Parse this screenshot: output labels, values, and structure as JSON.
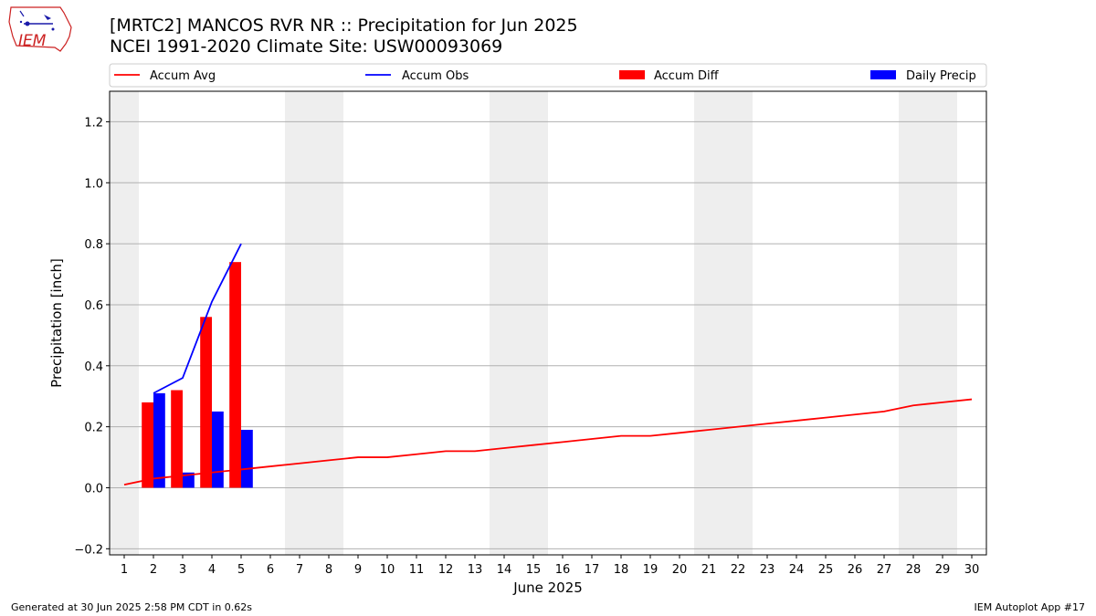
{
  "header": {
    "title_line1": "[MRTC2] MANCOS RVR NR :: Precipitation for Jun 2025",
    "title_line2": "NCEI 1991-2020 Climate Site: USW00093069",
    "logo_text": "IEM"
  },
  "footer": {
    "generated": "Generated at 30 Jun 2025 2:58 PM CDT in 0.62s",
    "app": "IEM Autoplot App #17"
  },
  "colors": {
    "avg": "#ff0000",
    "obs": "#0000ff",
    "diff": "#ff0000",
    "daily": "#0000ff",
    "weekend_band": "#eeeeee",
    "grid": "#b0b0b0"
  },
  "chart_data": {
    "type": "bar",
    "xlabel": "June 2025",
    "ylabel": "Precipitation [inch]",
    "xlim": [
      0.5,
      30.5
    ],
    "ylim": [
      -0.22,
      1.3
    ],
    "y_ticks": [
      -0.2,
      0.0,
      0.2,
      0.4,
      0.6,
      0.8,
      1.0,
      1.2
    ],
    "y_tick_labels": [
      "−0.2",
      "0.0",
      "0.2",
      "0.4",
      "0.6",
      "0.8",
      "1.0",
      "1.2"
    ],
    "x_ticks": [
      1,
      2,
      3,
      4,
      5,
      6,
      7,
      8,
      9,
      10,
      11,
      12,
      13,
      14,
      15,
      16,
      17,
      18,
      19,
      20,
      21,
      22,
      23,
      24,
      25,
      26,
      27,
      28,
      29,
      30
    ],
    "grid": "horizontal",
    "legend_position": "top",
    "weekend_bands": [
      [
        0.5,
        1.5
      ],
      [
        6.5,
        8.5
      ],
      [
        13.5,
        15.5
      ],
      [
        20.5,
        22.5
      ],
      [
        27.5,
        29.5
      ]
    ],
    "series": [
      {
        "name": "Accum Avg",
        "kind": "line",
        "x": [
          1,
          2,
          3,
          4,
          5,
          6,
          7,
          8,
          9,
          10,
          11,
          12,
          13,
          14,
          15,
          16,
          17,
          18,
          19,
          20,
          21,
          22,
          23,
          24,
          25,
          26,
          27,
          28,
          29,
          30
        ],
        "values": [
          0.01,
          0.03,
          0.04,
          0.05,
          0.06,
          0.07,
          0.08,
          0.09,
          0.1,
          0.1,
          0.11,
          0.12,
          0.12,
          0.13,
          0.14,
          0.15,
          0.16,
          0.17,
          0.17,
          0.18,
          0.19,
          0.2,
          0.21,
          0.22,
          0.23,
          0.24,
          0.25,
          0.27,
          0.28,
          0.29
        ]
      },
      {
        "name": "Accum Obs",
        "kind": "line",
        "x": [
          2,
          3,
          4,
          5
        ],
        "values": [
          0.31,
          0.36,
          0.61,
          0.8
        ]
      },
      {
        "name": "Accum Diff",
        "kind": "bar",
        "x": [
          2,
          3,
          4,
          5
        ],
        "values": [
          0.28,
          0.32,
          0.56,
          0.74
        ]
      },
      {
        "name": "Daily Precip",
        "kind": "bar",
        "x": [
          2,
          3,
          4,
          5
        ],
        "values": [
          0.31,
          0.05,
          0.25,
          0.19
        ]
      }
    ]
  }
}
